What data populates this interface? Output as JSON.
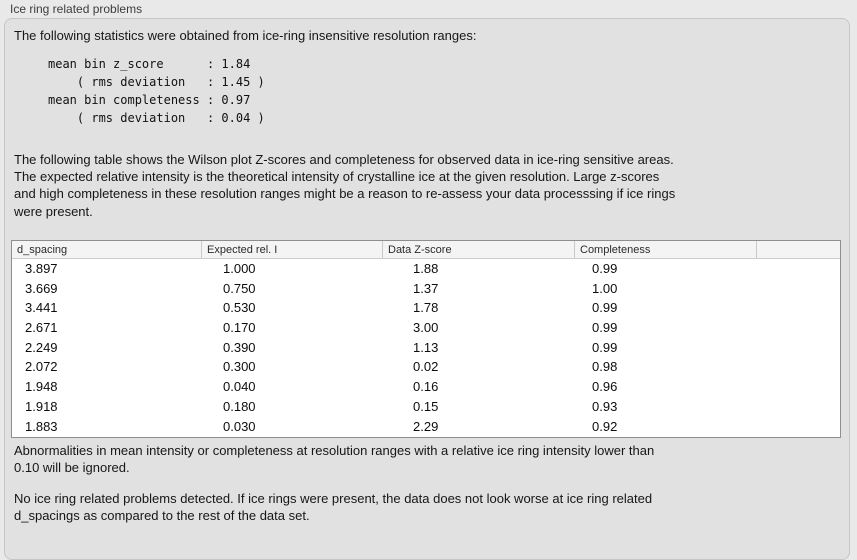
{
  "panel": {
    "title": "Ice ring related problems",
    "intro": "The following statistics were obtained from ice-ring insensitive resolution ranges:",
    "stats_block": "mean bin z_score      : 1.84\n    ( rms deviation   : 1.45 )\nmean bin completeness : 0.97\n    ( rms deviation   : 0.04 )",
    "table_description": "The following table shows the Wilson plot Z-scores and completeness for observed data in ice-ring sensitive areas.\nThe expected relative intensity is the theoretical intensity of crystalline ice at the given resolution. Large z-scores\nand high completeness in these resolution ranges might be a reason to re-assess your data processsing if ice rings\nwere present.",
    "ignore_note": "Abnormalities in mean intensity or completeness at resolution ranges with a relative ice ring intensity lower than\n0.10 will be ignored.",
    "conclusion": "No ice ring related problems detected. If ice rings were present, the data does not look worse at ice ring related\nd_spacings as compared to the rest of the data set."
  },
  "table": {
    "headers": [
      "d_spacing",
      "Expected rel. I",
      "Data Z-score",
      "Completeness"
    ],
    "rows": [
      [
        "3.897",
        "1.000",
        "1.88",
        "0.99"
      ],
      [
        "3.669",
        "0.750",
        "1.37",
        "1.00"
      ],
      [
        "3.441",
        "0.530",
        "1.78",
        "0.99"
      ],
      [
        "2.671",
        "0.170",
        "3.00",
        "0.99"
      ],
      [
        "2.249",
        "0.390",
        "1.13",
        "0.99"
      ],
      [
        "2.072",
        "0.300",
        "0.02",
        "0.98"
      ],
      [
        "1.948",
        "0.040",
        "0.16",
        "0.96"
      ],
      [
        "1.918",
        "0.180",
        "0.15",
        "0.93"
      ],
      [
        "1.883",
        "0.030",
        "2.29",
        "0.92"
      ]
    ]
  },
  "colors": {
    "window_background": "#e9e9e9",
    "panel_background": "#e1e1e1",
    "panel_border": "#c6c6c6",
    "table_border": "#8e8e8e",
    "table_header_background": "#f4f4f4",
    "text": "#161616"
  }
}
